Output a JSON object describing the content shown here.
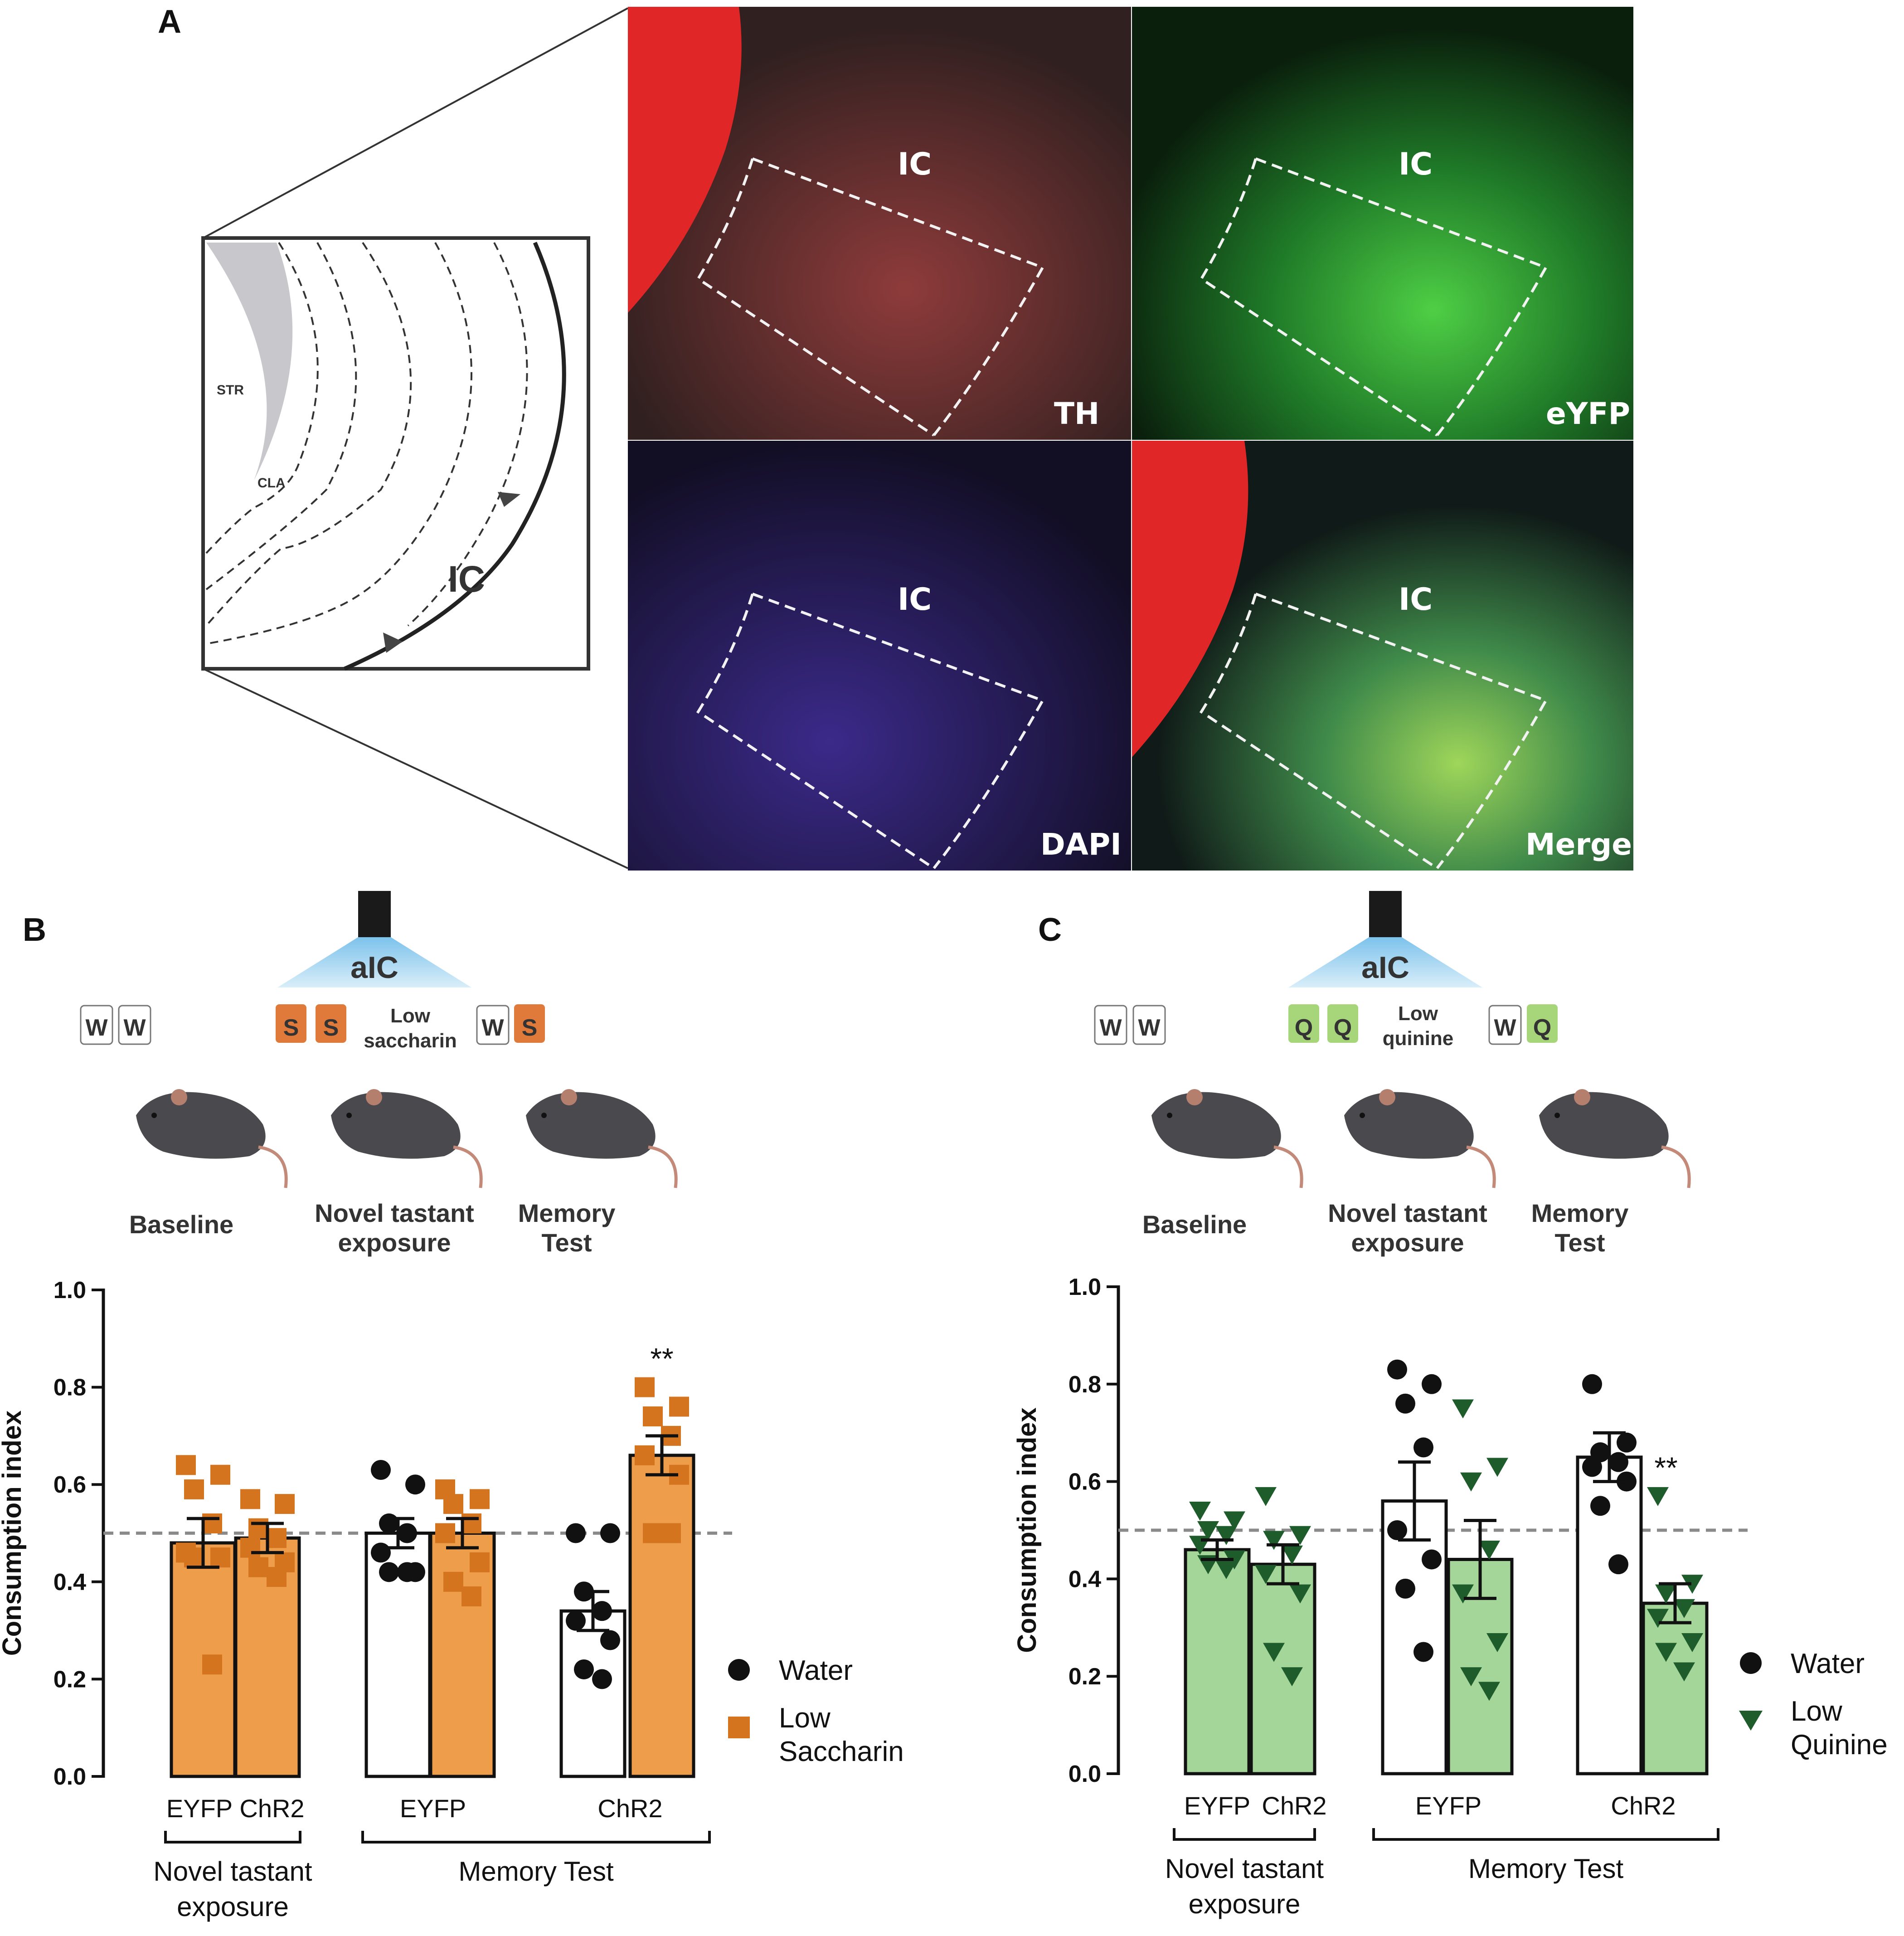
{
  "panel_labels": {
    "a": "A",
    "b": "B",
    "c": "C"
  },
  "panel_a": {
    "region_labels": {
      "str": "STR",
      "cla": "CLA",
      "ic": "IC"
    },
    "micro_ic_label": "IC",
    "micrographs": [
      {
        "stain": "TH",
        "color": "#d02020"
      },
      {
        "stain": "eYFP",
        "color": "#2fa83a"
      },
      {
        "stain": "DAPI",
        "color": "#3a2a9a"
      },
      {
        "stain": "Merge",
        "color": "#6ea83a"
      }
    ]
  },
  "panel_b": {
    "light_target": "aIC",
    "bottles_baseline": [
      "W",
      "W"
    ],
    "bottles_novel": [
      "S",
      "S"
    ],
    "bottles_test": [
      "W",
      "S"
    ],
    "tastant_note": [
      "Low",
      "saccharin"
    ],
    "stage_labels": {
      "baseline": "Baseline",
      "novel": [
        "Novel tastant",
        "exposure"
      ],
      "memory": [
        "Memory",
        "Test"
      ]
    },
    "tastant_color": "#e07a3a"
  },
  "panel_c": {
    "light_target": "aIC",
    "bottles_baseline": [
      "W",
      "W"
    ],
    "bottles_novel": [
      "Q",
      "Q"
    ],
    "bottles_test": [
      "W",
      "Q"
    ],
    "tastant_note": [
      "Low",
      "quinine"
    ],
    "stage_labels": {
      "baseline": "Baseline",
      "novel": [
        "Novel tastant",
        "exposure"
      ],
      "memory": [
        "Memory",
        "Test"
      ]
    },
    "tastant_color": "#a6d57a"
  },
  "chart_data": [
    {
      "type": "bar",
      "panel": "B",
      "ylabel": "Consumption index",
      "ylim": [
        0.0,
        1.0
      ],
      "yticks": [
        "0.0",
        "0.2",
        "0.4",
        "0.6",
        "0.8",
        "1.0"
      ],
      "reference_line": 0.5,
      "colors": {
        "bar_tastant": "#ee9d4a",
        "bar_water": "#ffffff",
        "marker_tastant": "#d4741f",
        "marker_water": "#111111"
      },
      "groups": [
        {
          "phase": "Novel tastant exposure",
          "group": "EYFP",
          "series": "Low Saccharin",
          "mean": 0.48,
          "sem": 0.05,
          "points": [
            0.64,
            0.62,
            0.59,
            0.52,
            0.46,
            0.45,
            0.45,
            0.23
          ]
        },
        {
          "phase": "Novel tastant exposure",
          "group": "ChR2",
          "series": "Low Saccharin",
          "mean": 0.49,
          "sem": 0.03,
          "points": [
            0.57,
            0.56,
            0.51,
            0.49,
            0.47,
            0.44,
            0.43,
            0.41
          ]
        },
        {
          "phase": "Memory Test",
          "group": "EYFP",
          "series": "Water",
          "mean": 0.5,
          "sem": 0.03,
          "points": [
            0.63,
            0.6,
            0.52,
            0.5,
            0.46,
            0.42,
            0.42,
            0.42
          ]
        },
        {
          "phase": "Memory Test",
          "group": "EYFP",
          "series": "Low Saccharin",
          "mean": 0.5,
          "sem": 0.03,
          "points": [
            0.59,
            0.57,
            0.56,
            0.52,
            0.5,
            0.44,
            0.4,
            0.37
          ]
        },
        {
          "phase": "Memory Test",
          "group": "ChR2",
          "series": "Water",
          "mean": 0.34,
          "sem": 0.04,
          "points": [
            0.5,
            0.5,
            0.38,
            0.34,
            0.32,
            0.28,
            0.22,
            0.2
          ]
        },
        {
          "phase": "Memory Test",
          "group": "ChR2",
          "series": "Low Saccharin",
          "mean": 0.66,
          "sem": 0.04,
          "points": [
            0.8,
            0.76,
            0.74,
            0.7,
            0.66,
            0.62,
            0.5,
            0.5
          ]
        }
      ],
      "tick_labels": [
        "EYFP",
        "ChR2",
        "EYFP",
        "ChR2"
      ],
      "phase_labels": [
        [
          "Novel tastant",
          "exposure"
        ],
        [
          "Memory Test"
        ]
      ],
      "significance": [
        {
          "group": "ChR2",
          "phase": "Memory Test",
          "label": "**"
        }
      ],
      "legend": [
        {
          "label": [
            "Water"
          ],
          "marker": "circle"
        },
        {
          "label": [
            "Low",
            "Saccharin"
          ],
          "marker": "square"
        }
      ]
    },
    {
      "type": "bar",
      "panel": "C",
      "ylabel": "Consumption index",
      "ylim": [
        0.0,
        1.0
      ],
      "yticks": [
        "0.0",
        "0.2",
        "0.4",
        "0.6",
        "0.8",
        "1.0"
      ],
      "reference_line": 0.5,
      "colors": {
        "bar_tastant": "#a4d699",
        "bar_water": "#ffffff",
        "marker_tastant": "#1f5c2c",
        "marker_water": "#111111"
      },
      "groups": [
        {
          "phase": "Novel tastant exposure",
          "group": "EYFP",
          "series": "Low Quinine",
          "mean": 0.46,
          "sem": 0.02,
          "points": [
            0.54,
            0.52,
            0.5,
            0.49,
            0.47,
            0.44,
            0.43,
            0.42
          ]
        },
        {
          "phase": "Novel tastant exposure",
          "group": "ChR2",
          "series": "Low Quinine",
          "mean": 0.43,
          "sem": 0.04,
          "points": [
            0.57,
            0.49,
            0.48,
            0.45,
            0.41,
            0.37,
            0.25,
            0.2
          ]
        },
        {
          "phase": "Memory Test",
          "group": "EYFP",
          "series": "Water",
          "mean": 0.56,
          "sem": 0.08,
          "points": [
            0.83,
            0.8,
            0.76,
            0.67,
            0.5,
            0.44,
            0.38,
            0.25
          ]
        },
        {
          "phase": "Memory Test",
          "group": "EYFP",
          "series": "Low Quinine",
          "mean": 0.44,
          "sem": 0.08,
          "points": [
            0.75,
            0.63,
            0.6,
            0.46,
            0.37,
            0.27,
            0.2,
            0.17
          ]
        },
        {
          "phase": "Memory Test",
          "group": "ChR2",
          "series": "Water",
          "mean": 0.65,
          "sem": 0.05,
          "points": [
            0.8,
            0.68,
            0.66,
            0.64,
            0.63,
            0.6,
            0.55,
            0.43
          ]
        },
        {
          "phase": "Memory Test",
          "group": "ChR2",
          "series": "Low Quinine",
          "mean": 0.35,
          "sem": 0.04,
          "points": [
            0.57,
            0.39,
            0.37,
            0.34,
            0.32,
            0.27,
            0.25,
            0.21
          ]
        }
      ],
      "tick_labels": [
        "EYFP",
        "ChR2",
        "EYFP",
        "ChR2"
      ],
      "phase_labels": [
        [
          "Novel tastant",
          "exposure"
        ],
        [
          "Memory Test"
        ]
      ],
      "significance": [
        {
          "group": "ChR2",
          "phase": "Memory Test",
          "label": "**"
        }
      ],
      "legend": [
        {
          "label": [
            "Water"
          ],
          "marker": "circle"
        },
        {
          "label": [
            "Low",
            "Quinine"
          ],
          "marker": "triangle"
        }
      ]
    }
  ]
}
